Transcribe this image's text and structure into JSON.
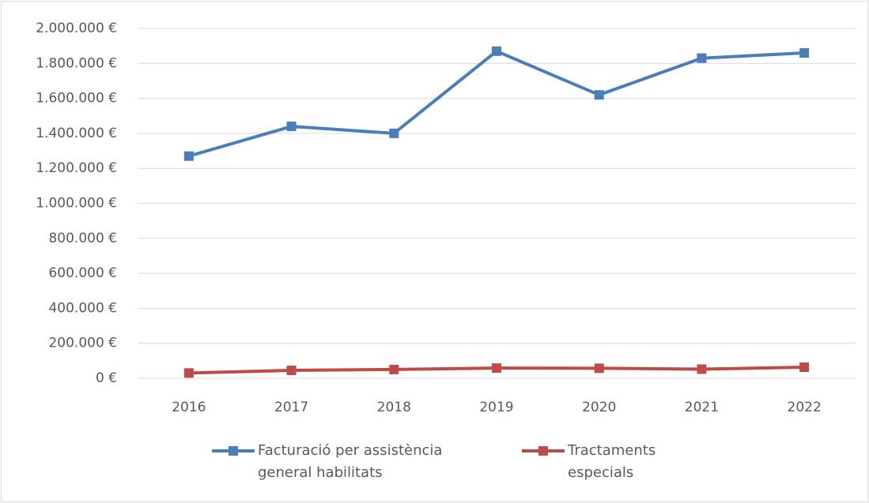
{
  "chart_data": {
    "type": "line",
    "categories": [
      "2016",
      "2017",
      "2018",
      "2019",
      "2020",
      "2021",
      "2022"
    ],
    "series": [
      {
        "name": "Facturació per assistència general habilitats",
        "color": "#4a7ebb",
        "values": [
          1270000,
          1440000,
          1400000,
          1870000,
          1620000,
          1830000,
          1860000
        ]
      },
      {
        "name": "Tractaments especials",
        "color": "#be4b48",
        "values": [
          30000,
          45000,
          50000,
          58000,
          57000,
          52000,
          63000
        ]
      }
    ],
    "ylim": [
      0,
      2000000
    ],
    "yticks": [
      {
        "value": 0,
        "label": "0 €"
      },
      {
        "value": 200000,
        "label": "200.000 €"
      },
      {
        "value": 400000,
        "label": "400.000 €"
      },
      {
        "value": 600000,
        "label": "600.000 €"
      },
      {
        "value": 800000,
        "label": "800.000 €"
      },
      {
        "value": 1000000,
        "label": "1.000.000 €"
      },
      {
        "value": 1200000,
        "label": "1.200.000 €"
      },
      {
        "value": 1400000,
        "label": "1.400.000 €"
      },
      {
        "value": 1600000,
        "label": "1.600.000 €"
      },
      {
        "value": 1800000,
        "label": "1.800.000 €"
      },
      {
        "value": 2000000,
        "label": "2.000.000 €"
      }
    ],
    "grid": true,
    "legend": "bottom"
  }
}
